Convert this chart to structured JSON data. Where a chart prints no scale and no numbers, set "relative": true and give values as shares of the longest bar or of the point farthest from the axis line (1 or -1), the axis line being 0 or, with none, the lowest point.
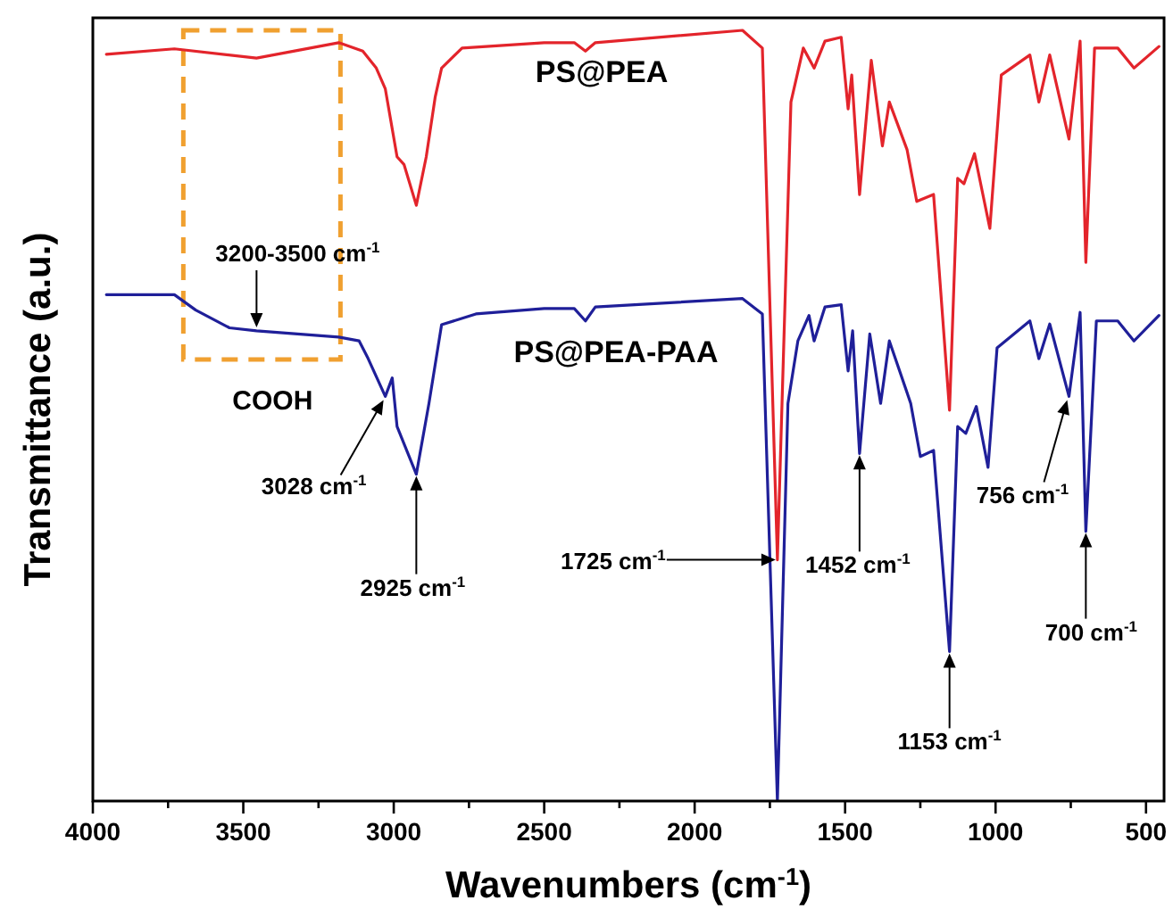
{
  "chart_data": {
    "type": "line",
    "relative": true,
    "xlabel": "Wavenumbers (cm$^{-1}$)",
    "ylabel": "Transmittance (a.u.)",
    "xlim": [
      4000,
      440
    ],
    "xticks": [
      4000,
      {
        "value": 3750,
        "label": null
      },
      3500,
      {
        "value": 3250,
        "label": null
      },
      3000,
      {
        "value": 2750,
        "label": null
      },
      2500,
      {
        "value": 2250,
        "label": null
      },
      2000,
      {
        "value": 1750,
        "label": null
      },
      1500,
      {
        "value": 1250,
        "label": null
      },
      1000,
      {
        "value": 750,
        "label": null
      },
      500
    ],
    "tick_labels": "x",
    "line_style": "solid",
    "series": [
      {
        "name": "PS@PEA",
        "color": "#e3242b",
        "x": [
          3955,
          3729,
          3456,
          3183,
          3103,
          3058,
          3028,
          2989,
          2966,
          2925,
          2892,
          2862,
          2841,
          2773,
          2500,
          2400,
          2363,
          2330,
          1841,
          1775,
          1725,
          1680,
          1639,
          1603,
          1567,
          1513,
          1490,
          1478,
          1452,
          1413,
          1376,
          1353,
          1294,
          1262,
          1206,
          1153,
          1126,
          1105,
          1070,
          1019,
          981,
          886,
          856,
          820,
          756,
          719,
          700,
          671,
          594,
          540,
          457
        ],
        "values": [
          0.969,
          0.976,
          0.964,
          0.984,
          0.973,
          0.951,
          0.924,
          0.836,
          0.826,
          0.773,
          0.836,
          0.914,
          0.951,
          0.977,
          0.984,
          0.984,
          0.973,
          0.984,
          1,
          0.977,
          0.313,
          0.907,
          0.977,
          0.951,
          0.986,
          0.991,
          0.898,
          0.942,
          0.787,
          0.961,
          0.85,
          0.907,
          0.845,
          0.778,
          0.787,
          0.507,
          0.808,
          0.801,
          0.84,
          0.743,
          0.942,
          0.968,
          0.907,
          0.968,
          0.859,
          0.986,
          0.699,
          0.977,
          0.977,
          0.951,
          0.979
        ]
      },
      {
        "name": "PS@PEA-PAA",
        "color": "#1f1f99",
        "x": [
          3955,
          3729,
          3658,
          3546,
          3456,
          3320,
          3183,
          3115,
          3085,
          3028,
          3005,
          2989,
          2925,
          2883,
          2841,
          2727,
          2500,
          2400,
          2363,
          2330,
          1841,
          1775,
          1725,
          1690,
          1657,
          1620,
          1603,
          1567,
          1513,
          1490,
          1475,
          1452,
          1418,
          1382,
          1353,
          1282,
          1250,
          1206,
          1153,
          1126,
          1099,
          1064,
          1025,
          995,
          886,
          856,
          820,
          756,
          719,
          700,
          665,
          594,
          540,
          457
        ],
        "values": [
          0.657,
          0.657,
          0.637,
          0.614,
          0.61,
          0.606,
          0.602,
          0.597,
          0.574,
          0.525,
          0.549,
          0.486,
          0.424,
          0.516,
          0.618,
          0.632,
          0.639,
          0.639,
          0.623,
          0.641,
          0.652,
          0.632,
          0,
          0.516,
          0.597,
          0.63,
          0.597,
          0.641,
          0.644,
          0.558,
          0.61,
          0.451,
          0.606,
          0.516,
          0.597,
          0.516,
          0.447,
          0.455,
          0.194,
          0.486,
          0.477,
          0.512,
          0.433,
          0.588,
          0.623,
          0.574,
          0.619,
          0.525,
          0.634,
          0.35,
          0.623,
          0.623,
          0.597,
          0.63
        ]
      }
    ],
    "annotations": [
      "COOH",
      {
        "text": "3200-3500 cm$^{-1}$",
        "x": 3456,
        "y": 0.61
      },
      {
        "text": "3028 cm$^{-1}$",
        "x": 3028,
        "y": 0.525
      },
      {
        "text": "2925 cm$^{-1}$",
        "x": 2925,
        "y": 0.424
      },
      {
        "text": "1725 cm$^{-1}$",
        "x": 1725,
        "y": 0.313
      },
      {
        "text": "1452 cm$^{-1}$",
        "x": 1452,
        "y": 0.451
      },
      {
        "text": "1153 cm$^{-1}$",
        "x": 1153,
        "y": 0.194
      },
      {
        "text": "756 cm$^{-1}$",
        "x": 756,
        "y": 0.525
      },
      {
        "text": "700 cm$^{-1}$",
        "x": 700,
        "y": 0.35
      }
    ]
  }
}
